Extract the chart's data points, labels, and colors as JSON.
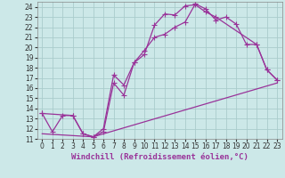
{
  "background_color": "#cce8e8",
  "grid_color": "#aacccc",
  "line_color": "#993399",
  "xlim": [
    -0.5,
    23.5
  ],
  "ylim": [
    11,
    24.5
  ],
  "xlabel": "Windchill (Refroidissement éolien,°C)",
  "xlabel_fontsize": 6.5,
  "xticks": [
    0,
    1,
    2,
    3,
    4,
    5,
    6,
    7,
    8,
    9,
    10,
    11,
    12,
    13,
    14,
    15,
    16,
    17,
    18,
    19,
    20,
    21,
    22,
    23
  ],
  "yticks": [
    11,
    12,
    13,
    14,
    15,
    16,
    17,
    18,
    19,
    20,
    21,
    22,
    23,
    24
  ],
  "tick_fontsize": 5.5,
  "line1_x": [
    0,
    1,
    2,
    3,
    4,
    5,
    6,
    7,
    8,
    9,
    10,
    11,
    12,
    13,
    14,
    15,
    16,
    17,
    18,
    19,
    20,
    21,
    22,
    23
  ],
  "line1_y": [
    13.5,
    11.7,
    13.3,
    13.3,
    11.5,
    11.2,
    11.7,
    16.5,
    15.3,
    18.5,
    19.7,
    21.0,
    21.3,
    22.0,
    22.5,
    24.3,
    23.8,
    22.7,
    23.0,
    22.3,
    20.3,
    20.3,
    17.8,
    16.8
  ],
  "line2_x": [
    0,
    3,
    4,
    5,
    6,
    7,
    8,
    9,
    10,
    11,
    12,
    13,
    14,
    15,
    16,
    17,
    21,
    22,
    23
  ],
  "line2_y": [
    13.5,
    13.3,
    11.5,
    11.2,
    12.0,
    17.3,
    16.3,
    18.5,
    19.3,
    22.2,
    23.3,
    23.2,
    24.1,
    24.2,
    23.5,
    23.0,
    20.3,
    17.8,
    16.8
  ],
  "line3_x": [
    0,
    5,
    23
  ],
  "line3_y": [
    11.5,
    11.2,
    16.5
  ],
  "marker_style": "+",
  "marker_size": 4,
  "linewidth": 0.9
}
